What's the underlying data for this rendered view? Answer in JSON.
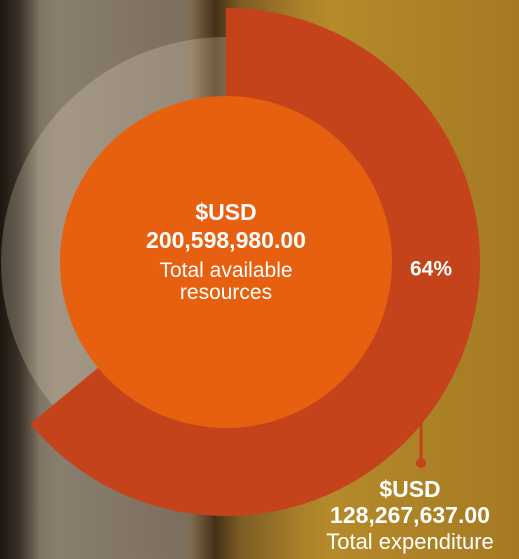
{
  "chart_data": {
    "type": "donut",
    "values": [
      64
    ],
    "value_labels": [
      "64%"
    ],
    "color": "#c4431b",
    "center_color": "#e6600f",
    "center": {
      "currency": "$USD",
      "amount": "200,598,980.00",
      "label": "Total available resources"
    },
    "callout": {
      "currency": "$USD",
      "amount": "128,267,637.00",
      "label": "Total expenditure"
    }
  }
}
